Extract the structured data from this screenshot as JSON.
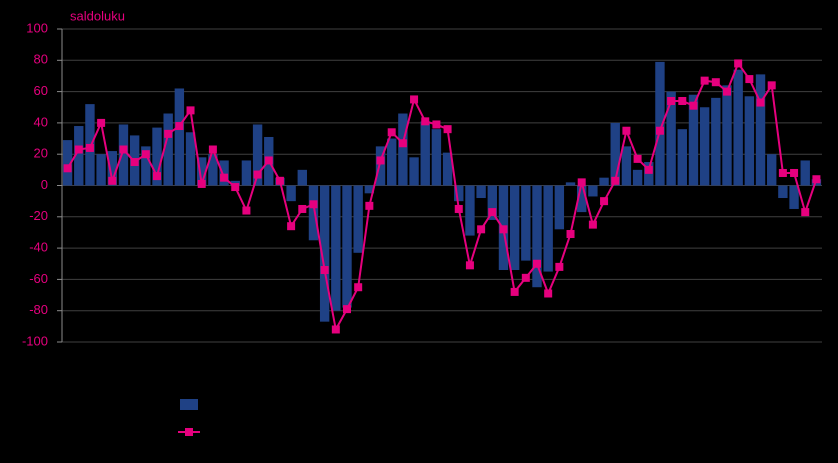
{
  "chart_data": {
    "type": "combo",
    "y_label": "saldoluku",
    "ylim": [
      -100,
      100
    ],
    "yticks": [
      -100,
      -80,
      -60,
      -40,
      -20,
      0,
      20,
      40,
      60,
      80,
      100
    ],
    "grid": true,
    "legend": "bottom-left",
    "tick_color": "#e6007e",
    "series": [
      {
        "type": "bar",
        "color": "#1f4185",
        "values": [
          29,
          38,
          52,
          20,
          22,
          39,
          32,
          25,
          37,
          46,
          62,
          34,
          18,
          20,
          16,
          3,
          16,
          39,
          31,
          5,
          -10,
          10,
          -35,
          -87,
          -80,
          -78,
          -43,
          -5,
          25,
          30,
          46,
          18,
          41,
          36,
          21,
          -10,
          -32,
          -8,
          -22,
          -54,
          -54,
          -48,
          -65,
          -55,
          -28,
          2,
          -17,
          -7,
          5,
          40,
          25,
          10,
          15,
          79,
          60,
          36,
          58,
          50,
          56,
          64,
          74,
          57,
          71,
          20,
          -8,
          -15,
          16,
          4
        ]
      },
      {
        "type": "line",
        "color": "#e6007e",
        "values": [
          11,
          23,
          24,
          40,
          3,
          23,
          15,
          20,
          6,
          33,
          38,
          48,
          1,
          23,
          5,
          -1,
          -16,
          7,
          16,
          3,
          -26,
          -15,
          -12,
          -54,
          -92,
          -79,
          -65,
          -13,
          16,
          34,
          27,
          55,
          41,
          39,
          36,
          -15,
          -51,
          -28,
          -17,
          -28,
          -68,
          -59,
          -50,
          -69,
          -52,
          -31,
          2,
          -25,
          -10,
          3,
          35,
          17,
          10,
          35,
          54,
          54,
          51,
          67,
          66,
          60,
          78,
          68,
          53,
          64,
          8,
          8,
          -17,
          4
        ]
      }
    ]
  }
}
